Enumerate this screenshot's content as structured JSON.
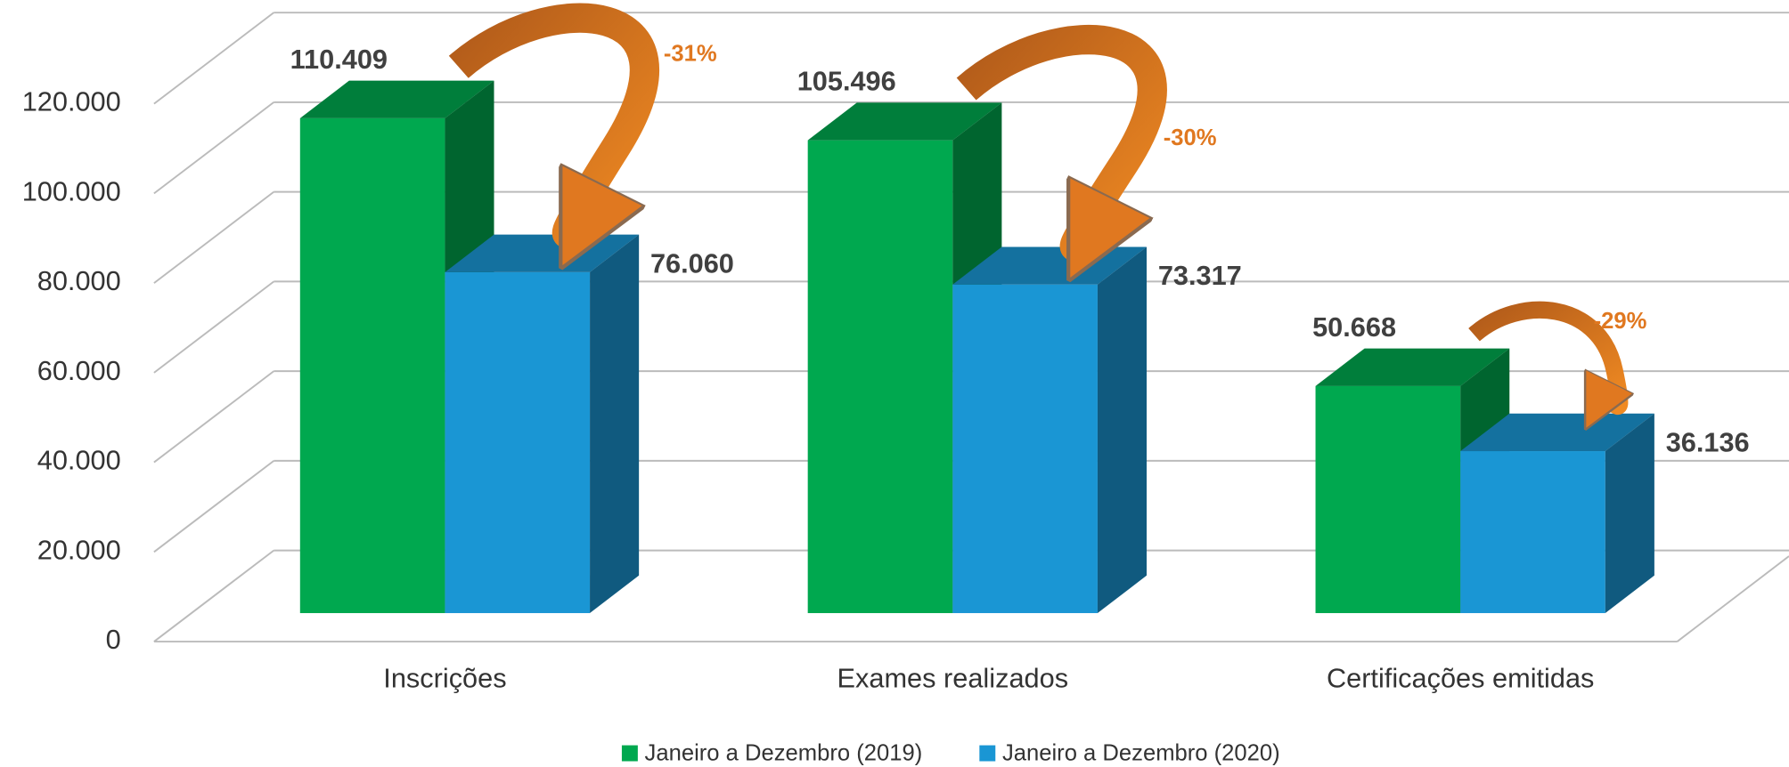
{
  "chart_data": {
    "type": "bar3d",
    "categories": [
      "Inscrições",
      "Exames realizados",
      "Certificações emitidas"
    ],
    "series": [
      {
        "name": "Janeiro a Dezembro (2019)",
        "color": "#00a84f",
        "values": [
          110409,
          105496,
          50668
        ],
        "value_labels": [
          "110.409",
          "105.496",
          "50.668"
        ]
      },
      {
        "name": "Janeiro a Dezembro (2020)",
        "color": "#1a96d4",
        "values": [
          76060,
          73317,
          36136
        ],
        "value_labels": [
          "76.060",
          "73.317",
          "36.136"
        ]
      }
    ],
    "annotations": [
      "-31%",
      "-30%",
      "-29%"
    ],
    "ylim": [
      0,
      120000
    ],
    "yticks": [
      0,
      {
        "value": 20000,
        "label": "20.000"
      },
      {
        "value": 40000,
        "label": "40.000"
      },
      {
        "value": 60000,
        "label": "60.000"
      },
      {
        "value": 80000,
        "label": "80.000"
      },
      {
        "value": 100000,
        "label": "100.000"
      },
      {
        "value": 120000,
        "label": "120.000"
      }
    ],
    "grid": true,
    "legend": "bottom"
  }
}
